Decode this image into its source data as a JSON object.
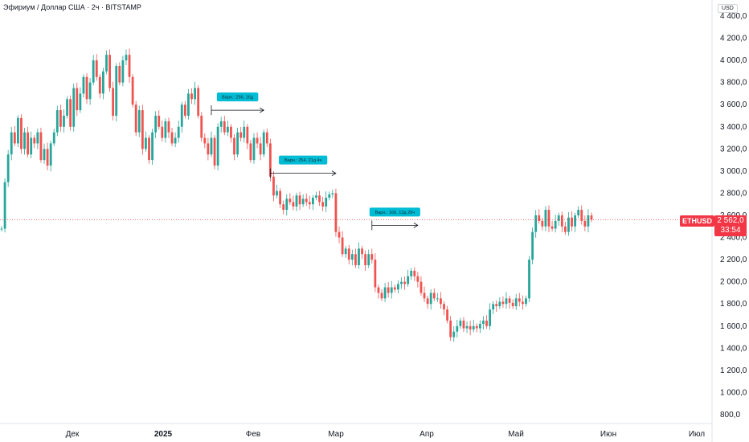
{
  "header": {
    "title": "Эфириум / Доллар США · 2ч · BITSTAMP",
    "currency": "USD"
  },
  "price": {
    "ticker": "ETHUSD",
    "last": "2 562,0",
    "countdown": "33:54",
    "last_value": 2562
  },
  "colors": {
    "up": "#26a69a",
    "down": "#ef5350",
    "price_line": "#f23645",
    "annotation": "#00bcd4"
  },
  "annotations": [
    {
      "label": "Варн.: 256, 16д",
      "from_index": 64,
      "to_index": 80,
      "y": 3550
    },
    {
      "label": "Варн.: 254, 21д 4ч",
      "from_index": 82,
      "to_index": 102,
      "y": 2980
    },
    {
      "label": "Варн.: 166, 13д 20ч",
      "from_index": 113,
      "to_index": 127,
      "y": 2510
    }
  ],
  "chart_data": {
    "type": "line",
    "title": "Эфириум / Доллар США · 2ч · BITSTAMP",
    "ylabel": "USD",
    "ylim": [
      800,
      4400
    ],
    "y_ticks": [
      "800,0",
      "1 000,0",
      "1 200,0",
      "1 400,0",
      "1 600,0",
      "1 800,0",
      "2 000,0",
      "2 200,0",
      "2 400,0",
      "2 600,0",
      "2 800,0",
      "3 000,0",
      "3 200,0",
      "3 400,0",
      "3 600,0",
      "3 800,0",
      "4 000,0",
      "4 200,0",
      "4 400,0"
    ],
    "x_ticks": [
      "Дек",
      "2025",
      "Фев",
      "Мар",
      "Апр",
      "Май",
      "Июн",
      "Июл"
    ],
    "series": [
      {
        "values": [
          2480,
          2900,
          3150,
          3350,
          3250,
          3480,
          3200,
          3350,
          3150,
          3300,
          3250,
          3350,
          3100,
          3200,
          3050,
          3250,
          3350,
          3550,
          3400,
          3500,
          3650,
          3400,
          3750,
          3550,
          3700,
          3850,
          3650,
          3800,
          4000,
          3850,
          3700,
          3900,
          4050,
          3750,
          3500,
          3950,
          3800,
          4000,
          4050,
          3850,
          3600,
          3350,
          3550,
          3200,
          3300,
          3100,
          3350,
          3500,
          3400,
          3300,
          3450,
          3350,
          3250,
          3300,
          3400,
          3600,
          3500,
          3700,
          3650,
          3750,
          3500,
          3300,
          3250,
          3150,
          3300,
          3050,
          3400,
          3450,
          3350,
          3400,
          3300,
          3150,
          3350,
          3300,
          3400,
          3250,
          3100,
          3300,
          3250,
          3150,
          3350,
          3250,
          2950,
          2780,
          2820,
          2700,
          2650,
          2750,
          2720,
          2680,
          2780,
          2700,
          2750,
          2720,
          2700,
          2760,
          2780,
          2720,
          2680,
          2760,
          2790,
          2800,
          2450,
          2400,
          2250,
          2300,
          2200,
          2250,
          2150,
          2300,
          2250,
          2150,
          2250,
          2200,
          1950,
          1900,
          1850,
          1950,
          1900,
          1950,
          1930,
          1980,
          2000,
          1980,
          2050,
          2100,
          2050,
          2000,
          1900,
          1850,
          1800,
          1900,
          1850,
          1850,
          1800,
          1750,
          1650,
          1500,
          1550,
          1600,
          1650,
          1580,
          1600,
          1570,
          1600,
          1580,
          1620,
          1650,
          1600,
          1750,
          1800,
          1780,
          1820,
          1800,
          1850,
          1810,
          1780,
          1850,
          1820,
          1800,
          1850,
          2200,
          2450,
          2600,
          2550,
          2500,
          2650,
          2500,
          2480,
          2550,
          2600,
          2500,
          2450,
          2580,
          2500,
          2600,
          2650,
          2550,
          2500,
          2600,
          2562
        ]
      }
    ]
  }
}
